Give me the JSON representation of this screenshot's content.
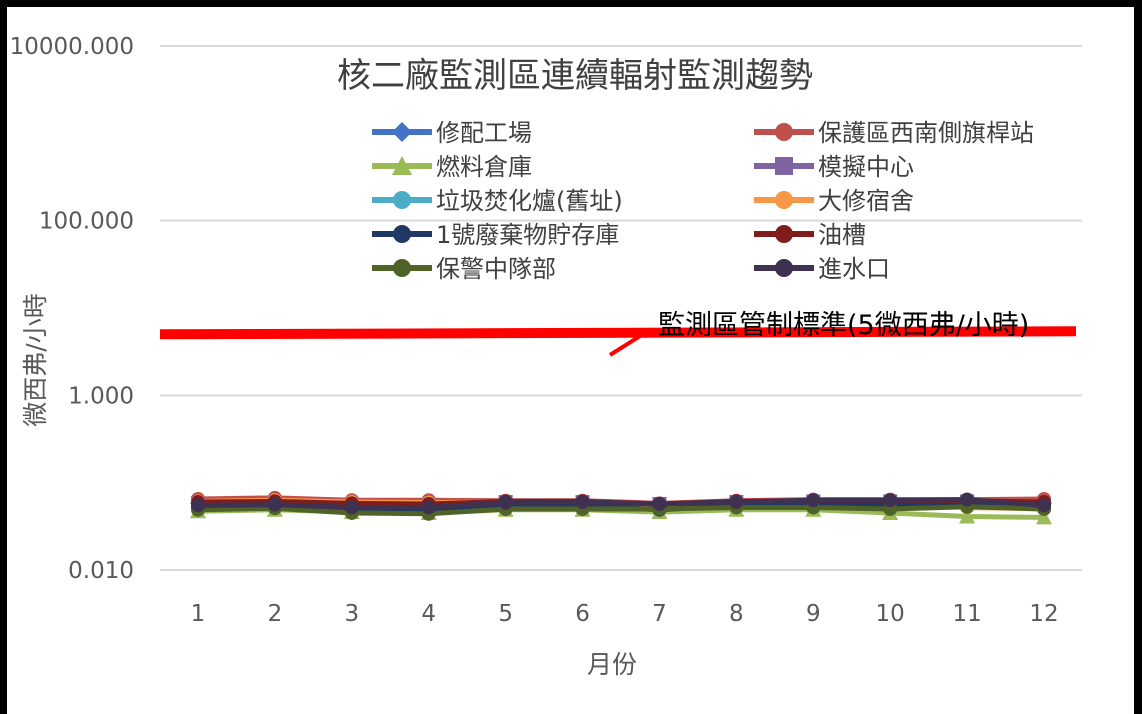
{
  "chart_data": {
    "type": "line",
    "title": "核二廠監測區連續輻射監測趨勢",
    "xlabel": "月份",
    "ylabel": "微西弗/小時",
    "yscale": "log",
    "ylim": [
      0.01,
      10000
    ],
    "yticks": [
      "10000.000",
      "100.000",
      "1.000",
      "0.010"
    ],
    "ytick_values": [
      10000,
      100,
      1,
      0.01
    ],
    "categories": [
      "1",
      "2",
      "3",
      "4",
      "5",
      "6",
      "7",
      "8",
      "9",
      "10",
      "11",
      "12"
    ],
    "grid": true,
    "legend_placement": "top-center, two columns",
    "series": [
      {
        "name": "修配工場",
        "color": "#4472C4",
        "marker": "diamond",
        "values": [
          0.058,
          0.06,
          0.056,
          0.055,
          0.06,
          0.06,
          0.055,
          0.06,
          0.062,
          0.062,
          0.062,
          0.058
        ]
      },
      {
        "name": "保護區西南側旗桿站",
        "color": "#C0504D",
        "marker": "circle",
        "values": [
          0.065,
          0.067,
          0.063,
          0.063,
          0.062,
          0.062,
          0.058,
          0.062,
          0.064,
          0.064,
          0.064,
          0.065
        ]
      },
      {
        "name": "燃料倉庫",
        "color": "#9BBB59",
        "marker": "triangle",
        "values": [
          0.047,
          0.049,
          0.046,
          0.045,
          0.049,
          0.049,
          0.046,
          0.049,
          0.049,
          0.045,
          0.041,
          0.04
        ]
      },
      {
        "name": "模擬中心",
        "color": "#8064A2",
        "marker": "square",
        "values": [
          0.058,
          0.059,
          0.057,
          0.056,
          0.06,
          0.06,
          0.057,
          0.06,
          0.061,
          0.061,
          0.061,
          0.057
        ]
      },
      {
        "name": "垃圾焚化爐(舊址)",
        "color": "#4BACC6",
        "marker": "circle",
        "values": [
          0.055,
          0.056,
          0.053,
          0.052,
          0.057,
          0.057,
          0.054,
          0.057,
          0.058,
          0.057,
          0.057,
          0.054
        ]
      },
      {
        "name": "大修宿舍",
        "color": "#F79646",
        "marker": "circle",
        "values": [
          0.061,
          0.063,
          0.06,
          0.059,
          0.06,
          0.06,
          0.056,
          0.06,
          0.061,
          0.058,
          0.052,
          0.05
        ]
      },
      {
        "name": "1號廢棄物貯存庫",
        "color": "#1F3864",
        "marker": "circle",
        "values": [
          0.052,
          0.054,
          0.05,
          0.05,
          0.055,
          0.055,
          0.049,
          0.055,
          0.056,
          0.056,
          0.057,
          0.053
        ]
      },
      {
        "name": "油槽",
        "color": "#7F1D1D",
        "marker": "circle",
        "values": [
          0.06,
          0.061,
          0.058,
          0.057,
          0.061,
          0.061,
          0.057,
          0.061,
          0.062,
          0.062,
          0.062,
          0.06
        ]
      },
      {
        "name": "保警中隊部",
        "color": "#4F6228",
        "marker": "circle",
        "values": [
          0.049,
          0.051,
          0.045,
          0.044,
          0.05,
          0.05,
          0.05,
          0.052,
          0.052,
          0.05,
          0.053,
          0.05
        ]
      },
      {
        "name": "進水口",
        "color": "#3F3151",
        "marker": "circle",
        "values": [
          0.055,
          0.056,
          0.052,
          0.052,
          0.059,
          0.06,
          0.057,
          0.06,
          0.063,
          0.063,
          0.064,
          0.055
        ]
      }
    ],
    "reference_line": {
      "label": "監測區管制標準(5微西弗/小時)",
      "value": 5,
      "color": "#FF0000"
    }
  }
}
